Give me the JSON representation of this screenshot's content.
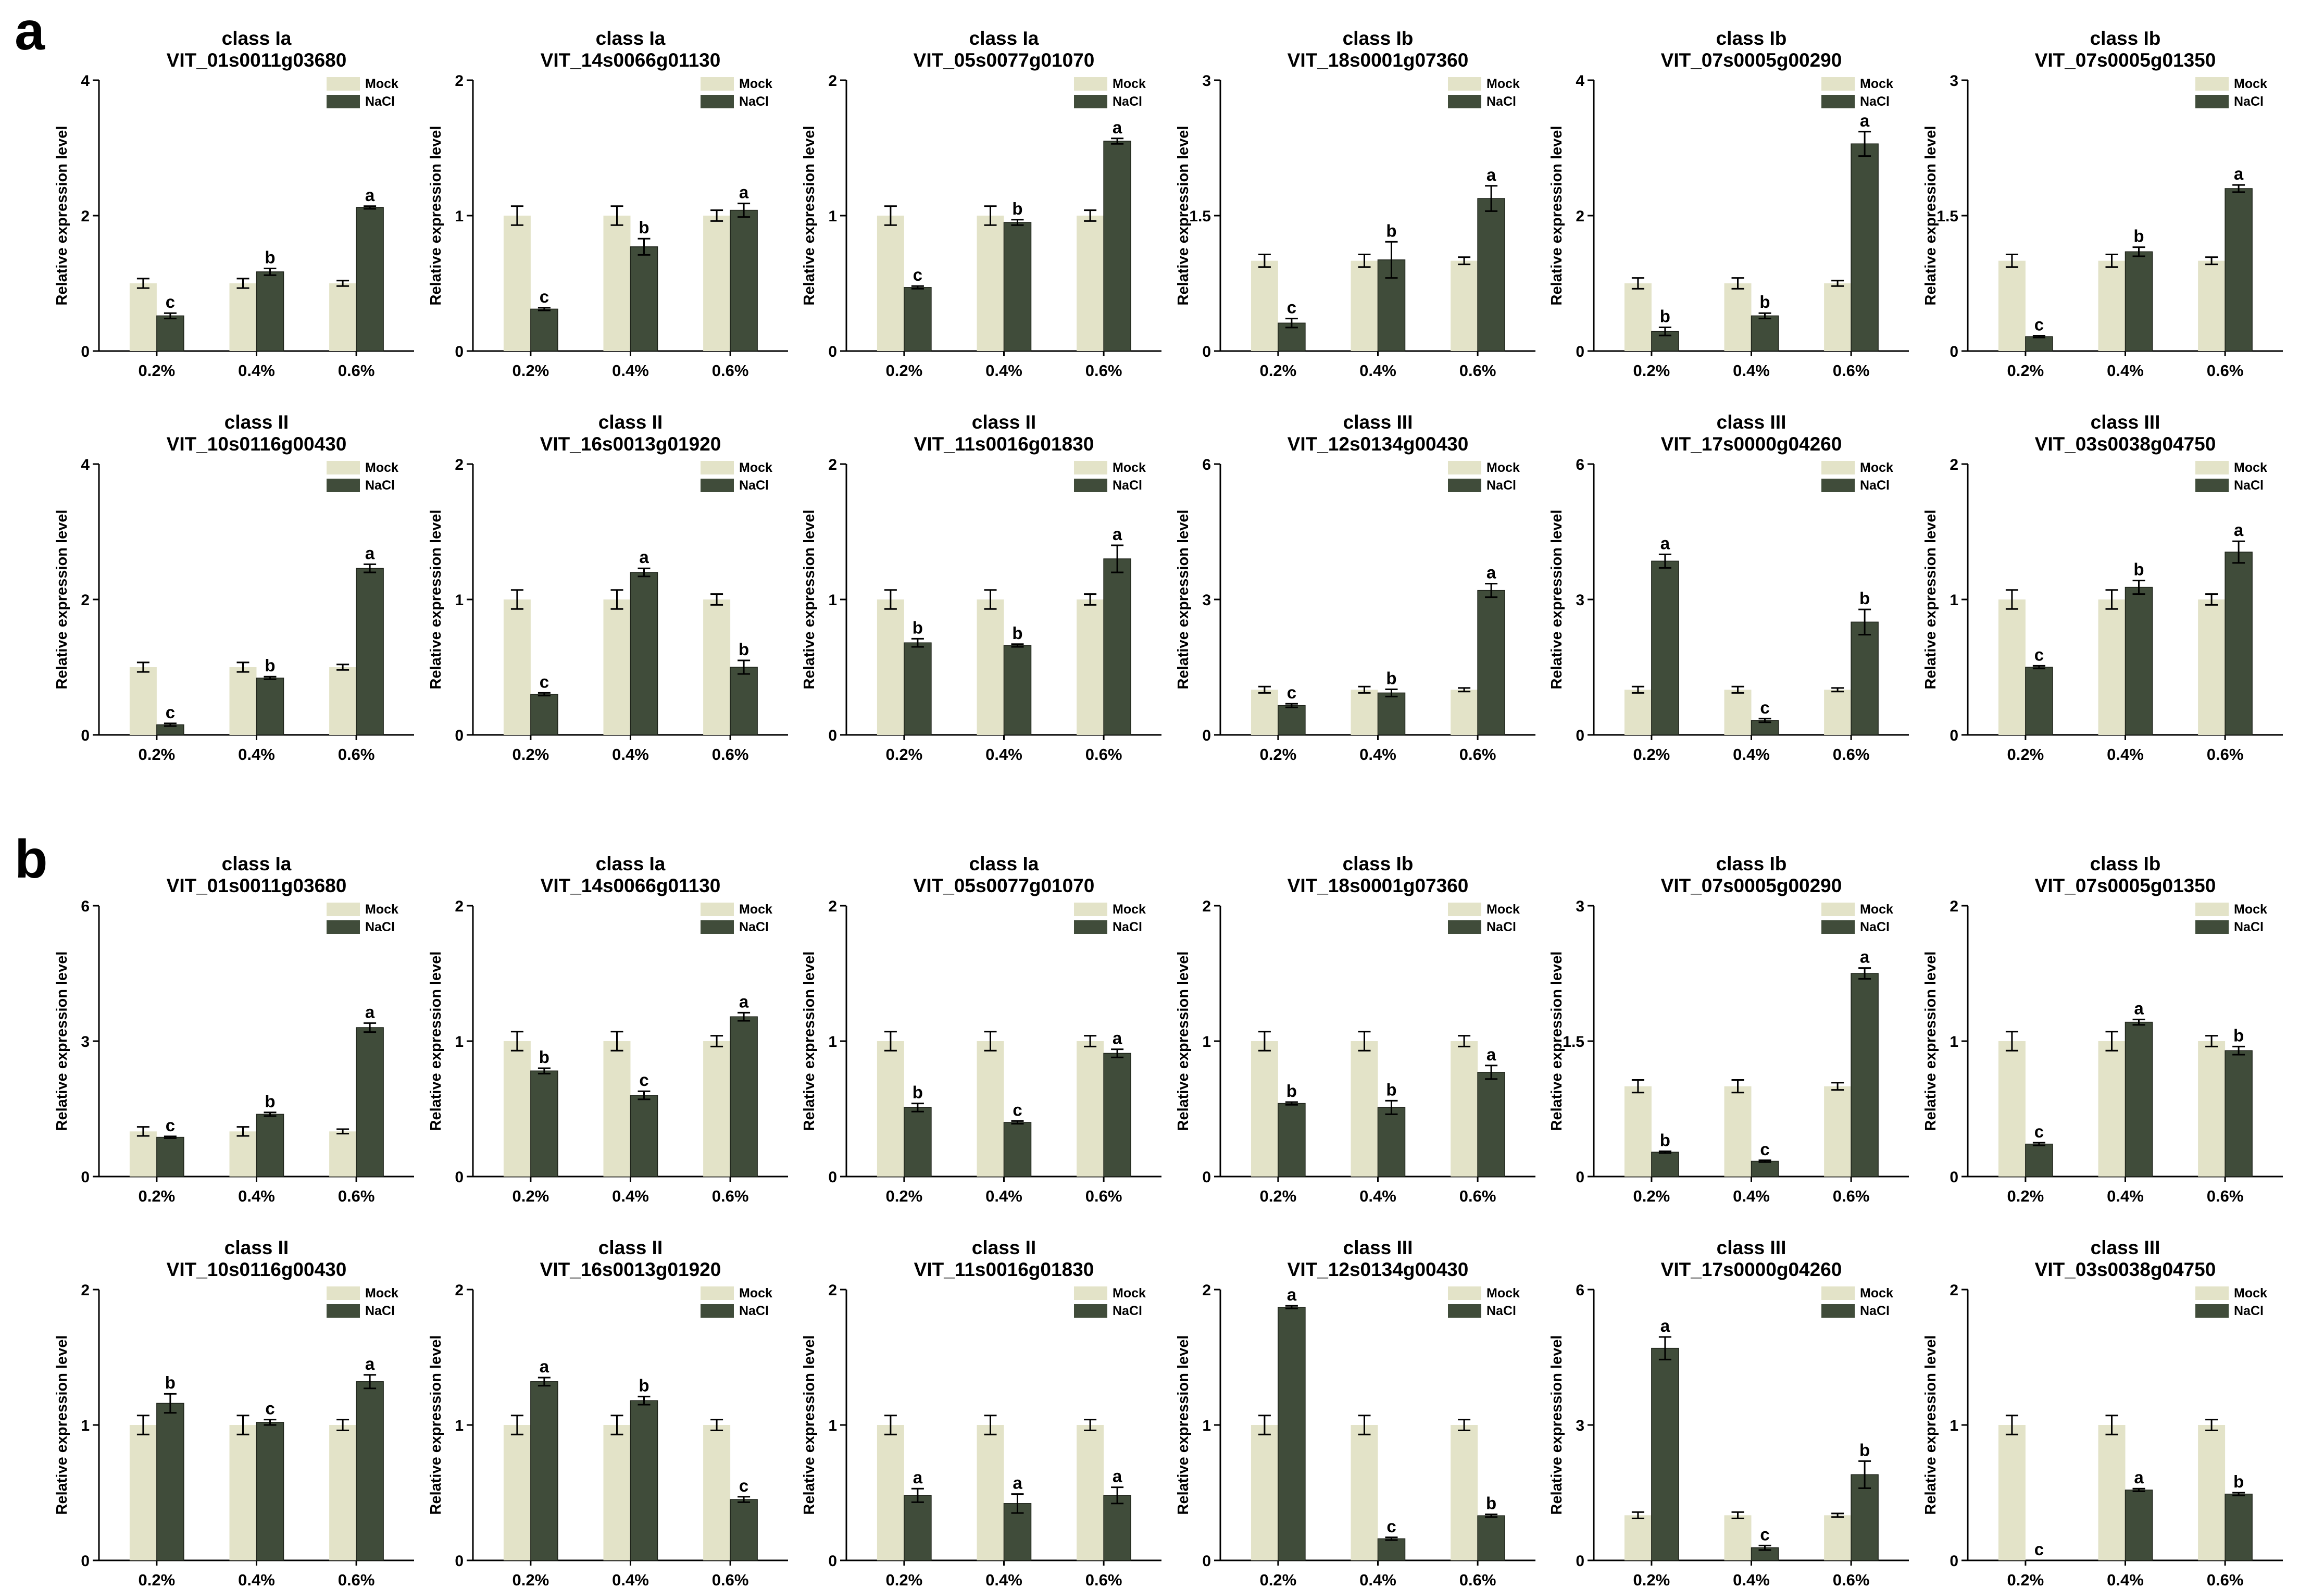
{
  "colors": {
    "mock": "#E3E3C8",
    "nacl": "#404C3A",
    "axis": "#000000"
  },
  "common": {
    "ylabel": "Relative expression level",
    "categories": [
      "0.2%",
      "0.4%",
      "0.6%"
    ],
    "legend": [
      "Mock",
      "NaCl"
    ]
  },
  "panels": [
    {
      "label": "a",
      "charts": [
        {
          "cls": "class Ia",
          "gene": "VIT_01s0011g03680",
          "ymax": 4,
          "mock": [
            1,
            1,
            1
          ],
          "mock_err": [
            0.07,
            0.07,
            0.04
          ],
          "nacl": [
            0.52,
            1.17,
            2.12
          ],
          "nacl_err": [
            0.04,
            0.05,
            0.02
          ],
          "letters": [
            "c",
            "b",
            "a"
          ]
        },
        {
          "cls": "class Ia",
          "gene": "VIT_14s0066g01130",
          "ymax": 2,
          "mock": [
            1,
            1,
            1
          ],
          "mock_err": [
            0.07,
            0.07,
            0.04
          ],
          "nacl": [
            0.31,
            0.77,
            1.04
          ],
          "nacl_err": [
            0.01,
            0.06,
            0.05
          ],
          "letters": [
            "c",
            "b",
            "a"
          ]
        },
        {
          "cls": "class Ia",
          "gene": "VIT_05s0077g01070",
          "ymax": 2,
          "mock": [
            1,
            1,
            1
          ],
          "mock_err": [
            0.07,
            0.07,
            0.04
          ],
          "nacl": [
            0.47,
            0.95,
            1.55
          ],
          "nacl_err": [
            0.01,
            0.02,
            0.02
          ],
          "letters": [
            "c",
            "b",
            "a"
          ]
        },
        {
          "cls": "class Ib",
          "gene": "VIT_18s0001g07360",
          "ymax": 3,
          "mock": [
            1,
            1,
            1
          ],
          "mock_err": [
            0.07,
            0.07,
            0.04
          ],
          "nacl": [
            0.31,
            1.01,
            1.69
          ],
          "nacl_err": [
            0.05,
            0.2,
            0.14
          ],
          "letters": [
            "c",
            "b",
            "a"
          ]
        },
        {
          "cls": "class Ib",
          "gene": "VIT_07s0005g00290",
          "ymax": 4,
          "mock": [
            1,
            1,
            1
          ],
          "mock_err": [
            0.08,
            0.08,
            0.04
          ],
          "nacl": [
            0.29,
            0.52,
            3.06
          ],
          "nacl_err": [
            0.06,
            0.04,
            0.18
          ],
          "letters": [
            "b",
            "b",
            "a"
          ]
        },
        {
          "cls": "class Ib",
          "gene": "VIT_07s0005g01350",
          "ymax": 3,
          "mock": [
            1,
            1,
            1
          ],
          "mock_err": [
            0.07,
            0.07,
            0.04
          ],
          "nacl": [
            0.16,
            1.1,
            1.8
          ],
          "nacl_err": [
            0.01,
            0.05,
            0.04
          ],
          "letters": [
            "c",
            "b",
            "a"
          ]
        }
      ]
    },
    {
      "label": "",
      "charts": [
        {
          "cls": "class II",
          "gene": "VIT_10s0116g00430",
          "ymax": 4,
          "mock": [
            1,
            1,
            1
          ],
          "mock_err": [
            0.07,
            0.07,
            0.04
          ],
          "nacl": [
            0.15,
            0.84,
            2.46
          ],
          "nacl_err": [
            0.02,
            0.02,
            0.06
          ],
          "letters": [
            "c",
            "b",
            "a"
          ]
        },
        {
          "cls": "class II",
          "gene": "VIT_16s0013g01920",
          "ymax": 2,
          "mock": [
            1,
            1,
            1
          ],
          "mock_err": [
            0.07,
            0.07,
            0.04
          ],
          "nacl": [
            0.3,
            1.2,
            0.5
          ],
          "nacl_err": [
            0.01,
            0.03,
            0.05
          ],
          "letters": [
            "c",
            "a",
            "b"
          ]
        },
        {
          "cls": "class II",
          "gene": "VIT_11s0016g01830",
          "ymax": 2,
          "mock": [
            1,
            1,
            1
          ],
          "mock_err": [
            0.07,
            0.07,
            0.04
          ],
          "nacl": [
            0.68,
            0.66,
            1.3
          ],
          "nacl_err": [
            0.03,
            0.01,
            0.1
          ],
          "letters": [
            "b",
            "b",
            "a"
          ]
        },
        {
          "cls": "class III",
          "gene": "VIT_12s0134g00430",
          "ymax": 6,
          "mock": [
            1,
            1,
            1
          ],
          "mock_err": [
            0.07,
            0.07,
            0.04
          ],
          "nacl": [
            0.65,
            0.93,
            3.2
          ],
          "nacl_err": [
            0.04,
            0.08,
            0.15
          ],
          "letters": [
            "c",
            "b",
            "a"
          ]
        },
        {
          "cls": "class III",
          "gene": "VIT_17s0000g04260",
          "ymax": 6,
          "mock": [
            1,
            1,
            1
          ],
          "mock_err": [
            0.07,
            0.07,
            0.04
          ],
          "nacl": [
            3.85,
            0.32,
            2.5
          ],
          "nacl_err": [
            0.15,
            0.04,
            0.28
          ],
          "letters": [
            "a",
            "c",
            "b"
          ]
        },
        {
          "cls": "class III",
          "gene": "VIT_03s0038g04750",
          "ymax": 2,
          "mock": [
            1,
            1,
            1
          ],
          "mock_err": [
            0.07,
            0.07,
            0.04
          ],
          "nacl": [
            0.5,
            1.09,
            1.35
          ],
          "nacl_err": [
            0.01,
            0.05,
            0.08
          ],
          "letters": [
            "c",
            "b",
            "a"
          ]
        }
      ]
    },
    {
      "label": "b",
      "charts": [
        {
          "cls": "class Ia",
          "gene": "VIT_01s0011g03680",
          "ymax": 6,
          "mock": [
            1,
            1,
            1
          ],
          "mock_err": [
            0.1,
            0.1,
            0.05
          ],
          "nacl": [
            0.87,
            1.38,
            3.3
          ],
          "nacl_err": [
            0.02,
            0.04,
            0.1
          ],
          "letters": [
            "c",
            "b",
            "a"
          ]
        },
        {
          "cls": "class Ia",
          "gene": "VIT_14s0066g01130",
          "ymax": 2,
          "mock": [
            1,
            1,
            1
          ],
          "mock_err": [
            0.07,
            0.07,
            0.04
          ],
          "nacl": [
            0.78,
            0.6,
            1.18
          ],
          "nacl_err": [
            0.02,
            0.03,
            0.03
          ],
          "letters": [
            "b",
            "c",
            "a"
          ]
        },
        {
          "cls": "class Ia",
          "gene": "VIT_05s0077g01070",
          "ymax": 2,
          "mock": [
            1,
            1,
            1
          ],
          "mock_err": [
            0.07,
            0.07,
            0.04
          ],
          "nacl": [
            0.51,
            0.4,
            0.91
          ],
          "nacl_err": [
            0.03,
            0.01,
            0.03
          ],
          "letters": [
            "b",
            "c",
            "a"
          ]
        },
        {
          "cls": "class Ib",
          "gene": "VIT_18s0001g07360",
          "ymax": 2,
          "mock": [
            1,
            1,
            1
          ],
          "mock_err": [
            0.07,
            0.07,
            0.04
          ],
          "nacl": [
            0.54,
            0.51,
            0.77
          ],
          "nacl_err": [
            0.01,
            0.05,
            0.05
          ],
          "letters": [
            "b",
            "b",
            "a"
          ]
        },
        {
          "cls": "class Ib",
          "gene": "VIT_07s0005g00290",
          "ymax": 3,
          "mock": [
            1,
            1,
            1
          ],
          "mock_err": [
            0.07,
            0.07,
            0.04
          ],
          "nacl": [
            0.27,
            0.17,
            2.25
          ],
          "nacl_err": [
            0.01,
            0.01,
            0.06
          ],
          "letters": [
            "b",
            "c",
            "a"
          ]
        },
        {
          "cls": "class Ib",
          "gene": "VIT_07s0005g01350",
          "ymax": 2,
          "mock": [
            1,
            1,
            1
          ],
          "mock_err": [
            0.07,
            0.07,
            0.04
          ],
          "nacl": [
            0.24,
            1.14,
            0.93
          ],
          "nacl_err": [
            0.01,
            0.02,
            0.03
          ],
          "letters": [
            "c",
            "a",
            "b"
          ]
        }
      ]
    },
    {
      "label": "",
      "charts": [
        {
          "cls": "class II",
          "gene": "VIT_10s0116g00430",
          "ymax": 2,
          "mock": [
            1,
            1,
            1
          ],
          "mock_err": [
            0.07,
            0.07,
            0.04
          ],
          "nacl": [
            1.16,
            1.02,
            1.32
          ],
          "nacl_err": [
            0.07,
            0.02,
            0.05
          ],
          "letters": [
            "b",
            "c",
            "a"
          ]
        },
        {
          "cls": "class II",
          "gene": "VIT_16s0013g01920",
          "ymax": 2,
          "mock": [
            1,
            1,
            1
          ],
          "mock_err": [
            0.07,
            0.07,
            0.04
          ],
          "nacl": [
            1.32,
            1.18,
            0.45
          ],
          "nacl_err": [
            0.03,
            0.03,
            0.02
          ],
          "letters": [
            "a",
            "b",
            "c"
          ]
        },
        {
          "cls": "class II",
          "gene": "VIT_11s0016g01830",
          "ymax": 2,
          "mock": [
            1,
            1,
            1
          ],
          "mock_err": [
            0.07,
            0.07,
            0.04
          ],
          "nacl": [
            0.48,
            0.42,
            0.48
          ],
          "nacl_err": [
            0.05,
            0.07,
            0.06
          ],
          "letters": [
            "a",
            "a",
            "a"
          ]
        },
        {
          "cls": "class III",
          "gene": "VIT_12s0134g00430",
          "ymax": 2,
          "mock": [
            1,
            1,
            1
          ],
          "mock_err": [
            0.07,
            0.07,
            0.04
          ],
          "nacl": [
            1.87,
            0.16,
            0.33
          ],
          "nacl_err": [
            0.01,
            0.01,
            0.01
          ],
          "letters": [
            "a",
            "c",
            "b"
          ]
        },
        {
          "cls": "class III",
          "gene": "VIT_17s0000g04260",
          "ymax": 6,
          "mock": [
            1,
            1,
            1
          ],
          "mock_err": [
            0.07,
            0.07,
            0.04
          ],
          "nacl": [
            4.7,
            0.28,
            1.9
          ],
          "nacl_err": [
            0.25,
            0.05,
            0.3
          ],
          "letters": [
            "a",
            "c",
            "b"
          ]
        },
        {
          "cls": "class III",
          "gene": "VIT_03s0038g04750",
          "ymax": 2,
          "mock": [
            1,
            1,
            1
          ],
          "mock_err": [
            0.07,
            0.07,
            0.04
          ],
          "nacl": [
            0.0,
            0.52,
            0.49
          ],
          "nacl_err": [
            0.0,
            0.01,
            0.01
          ],
          "letters": [
            "c",
            "a",
            "b"
          ]
        }
      ]
    }
  ],
  "chart_data": {
    "type": "bar",
    "description_note": "24 grouped bar charts (Mock vs NaCl) of relative expression level at 0.2%, 0.4%, 0.6%; full data in panels[].charts[]",
    "categories": [
      "0.2%",
      "0.4%",
      "0.6%"
    ],
    "series": [
      {
        "name": "Mock"
      },
      {
        "name": "NaCl"
      }
    ],
    "ylabel": "Relative expression level"
  }
}
